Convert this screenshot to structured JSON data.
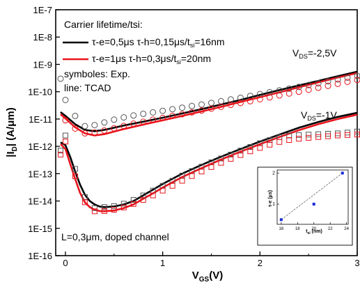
{
  "chart_data": [
    {
      "type": "line",
      "xlabel_main": "V",
      "xlabel_sub": "GS",
      "xlabel_tail": "(V)",
      "ylabel_pre": "|I",
      "ylabel_sub": "D",
      "ylabel_post": "| (A/μm)",
      "xlim": [
        -0.1,
        3.0
      ],
      "ylim_exp": [
        -16,
        -7
      ],
      "yscale": "log",
      "x_ticks": [
        0,
        1,
        2,
        3
      ],
      "x_tick_labels": [
        "0",
        "1",
        "2",
        "3"
      ],
      "y_ticks_exp": [
        -7,
        -8,
        -9,
        -10,
        -11,
        -12,
        -13,
        -14,
        -15,
        -16
      ],
      "y_tick_labels": [
        "1E-7",
        "1E-8",
        "1E-9",
        "1E-10",
        "1E-11",
        "1E-12",
        "1E-13",
        "1E-14",
        "1E-15",
        "1E-16"
      ],
      "legend": {
        "title": "Carrier lifetime/tsi:",
        "entries": [
          {
            "pre": "τ-e=0,5μs τ-h=0,15μs/t",
            "sub": "si",
            "post": "=16nm",
            "color": "#000000"
          },
          {
            "pre": "τ-e=1μs τ-h=0,3μs/t",
            "sub": "si",
            "post": "=20nm",
            "color": "#e8141c"
          }
        ],
        "note1": "symboles: Exp.",
        "note2": "line: TCAD"
      },
      "annotations": {
        "vds_high_pre": "V",
        "vds_high_sub": "DS",
        "vds_high_post": "=-2,5V",
        "vds_low_pre": "V",
        "vds_low_sub": "DS",
        "vds_low_post": "=-1V",
        "bottom_note": "L=0,3μm, doped channel"
      },
      "series": [
        {
          "style": "line",
          "color": "#000000",
          "x": [
            -0.05,
            0.0,
            0.1,
            0.2,
            0.3,
            0.4,
            0.6,
            0.8,
            1.0,
            1.2,
            1.4,
            1.6,
            1.8,
            2.0,
            2.2,
            2.4,
            2.6,
            2.8,
            3.0
          ],
          "y": [
            1.8e-11,
            1.3e-11,
            6.5e-12,
            4e-12,
            3.6e-12,
            4e-12,
            5.8e-12,
            8e-12,
            1.12e-11,
            1.6e-11,
            2.3e-11,
            3.4e-11,
            5e-11,
            7.6e-11,
            1.15e-10,
            1.7e-10,
            2.5e-10,
            3.7e-10,
            5.4e-10
          ]
        },
        {
          "style": "line",
          "color": "#e8141c",
          "x": [
            -0.05,
            0.0,
            0.1,
            0.2,
            0.3,
            0.4,
            0.6,
            0.8,
            1.0,
            1.2,
            1.4,
            1.6,
            1.8,
            2.0,
            2.2,
            2.4,
            2.6,
            2.8,
            3.0
          ],
          "y": [
            1.5e-11,
            1.05e-11,
            5e-12,
            3e-12,
            2.5e-12,
            2.8e-12,
            4.3e-12,
            6.3e-12,
            9e-12,
            1.3e-11,
            1.9e-11,
            2.8e-11,
            4.2e-11,
            6.3e-11,
            9.5e-11,
            1.45e-10,
            2.2e-10,
            3.3e-10,
            4.8e-10
          ]
        },
        {
          "style": "line",
          "color": "#000000",
          "x": [
            -0.05,
            0.0,
            0.05,
            0.1,
            0.15,
            0.2,
            0.25,
            0.3,
            0.35,
            0.4,
            0.5,
            0.6,
            0.7,
            0.8,
            0.9,
            1.0,
            1.2,
            1.4,
            1.6,
            1.8,
            2.0,
            2.2,
            2.4,
            2.6,
            2.8,
            3.0
          ],
          "y": [
            1.4e-12,
            1.1e-12,
            4e-13,
            1.2e-13,
            4e-14,
            1.7e-14,
            1e-14,
            7.5e-15,
            6.3e-15,
            6e-15,
            6.3e-15,
            7.5e-15,
            1e-14,
            1.6e-14,
            2.6e-14,
            4.2e-14,
            1e-13,
            2.1e-13,
            4.2e-13,
            8e-13,
            1.5e-12,
            2.7e-12,
            4.8e-12,
            7.8e-12,
            1.2e-11,
            1.7e-11
          ]
        },
        {
          "style": "line",
          "color": "#e8141c",
          "x": [
            -0.05,
            0.0,
            0.05,
            0.1,
            0.15,
            0.2,
            0.25,
            0.3,
            0.35,
            0.4,
            0.5,
            0.6,
            0.7,
            0.8,
            0.9,
            1.0,
            1.2,
            1.4,
            1.6,
            1.8,
            2.0,
            2.2,
            2.4,
            2.6,
            2.8,
            3.0
          ],
          "y": [
            1.2e-12,
            8e-13,
            2.2e-13,
            6.5e-14,
            2e-14,
            9e-15,
            6e-15,
            4.8e-15,
            4.3e-15,
            4.2e-15,
            4.5e-15,
            5.5e-15,
            7.5e-15,
            1.2e-14,
            1.9e-14,
            3.1e-14,
            7.5e-14,
            1.6e-13,
            3.3e-13,
            6.4e-13,
            1.2e-12,
            2.2e-12,
            3.9e-12,
            6.5e-12,
            1e-11,
            1.45e-11
          ]
        },
        {
          "style": "circle",
          "color": "#555555",
          "x": [
            -0.05,
            0.0,
            0.1,
            0.2,
            0.3,
            0.4,
            0.5,
            0.6,
            0.7,
            0.8,
            0.9,
            1.0,
            1.1,
            1.2,
            1.3,
            1.4,
            1.5,
            1.6,
            1.7,
            1.8,
            1.9,
            2.0,
            2.1,
            2.2,
            2.3,
            2.4,
            2.5,
            2.6,
            2.7,
            2.8,
            2.9,
            3.0
          ],
          "y": [
            3e-10,
            5e-11,
            1.3e-11,
            5.5e-12,
            6e-12,
            7.5e-12,
            9.5e-12,
            1.15e-11,
            1.35e-11,
            1.55e-11,
            1.75e-11,
            2e-11,
            2.3e-11,
            2.6e-11,
            3e-11,
            3.4e-11,
            3.9e-11,
            4.5e-11,
            5.2e-11,
            6e-11,
            7e-11,
            8.2e-11,
            9.6e-11,
            1.12e-10,
            1.3e-10,
            1.5e-10,
            1.75e-10,
            2.05e-10,
            2.4e-10,
            2.8e-10,
            3.25e-10,
            3.8e-10
          ]
        },
        {
          "style": "circle",
          "color": "#e8141c",
          "x": [
            0.0,
            0.1,
            0.2,
            0.3,
            0.4,
            0.5,
            0.6,
            0.7,
            0.8,
            0.9,
            1.0,
            1.1,
            1.2,
            1.3,
            1.4,
            1.5,
            1.6,
            1.7,
            1.8,
            1.9,
            2.0,
            2.1,
            2.2,
            2.3,
            2.4,
            2.5,
            2.6,
            2.7,
            2.8,
            2.9,
            3.0
          ],
          "y": [
            9e-12,
            4.5e-12,
            3e-12,
            3.2e-12,
            3.8e-12,
            4.6e-12,
            5.6e-12,
            6.8e-12,
            8e-12,
            9.5e-12,
            1.1e-11,
            1.3e-11,
            1.5e-11,
            1.75e-11,
            2.05e-11,
            2.4e-11,
            2.8e-11,
            3.3e-11,
            3.85e-11,
            4.5e-11,
            5.3e-11,
            6.2e-11,
            7.3e-11,
            8.6e-11,
            1e-10,
            1.18e-10,
            1.4e-10,
            1.65e-10,
            1.95e-10,
            2.3e-10,
            2.7e-10
          ]
        },
        {
          "style": "square",
          "color": "#555555",
          "x": [
            -0.05,
            0.0,
            0.1,
            0.2,
            0.3,
            0.4,
            0.5,
            0.6,
            0.7,
            0.8,
            0.9,
            1.0,
            1.1,
            1.2,
            1.3,
            1.4,
            1.5,
            1.6,
            1.7,
            1.8,
            1.9,
            2.0,
            2.1,
            2.2,
            2.3,
            2.4,
            2.5,
            2.6,
            2.7,
            2.8,
            2.9,
            3.0
          ],
          "y": [
            7e-13,
            2.5e-12,
            1.5e-13,
            1.4e-14,
            5.5e-15,
            6e-15,
            6.5e-15,
            8e-15,
            1.1e-14,
            1.6e-14,
            2.4e-14,
            3.6e-14,
            5.5e-14,
            8.5e-14,
            1.25e-13,
            1.8e-13,
            2.6e-13,
            3.6e-13,
            5e-13,
            7e-13,
            9.5e-13,
            1.3e-12,
            1.7e-12,
            2.2e-12,
            2.5e-12,
            2.6e-12,
            2.7e-12,
            2.8e-12,
            2.9e-12,
            3e-12,
            3.2e-12,
            3.5e-12
          ]
        },
        {
          "style": "square",
          "color": "#e8141c",
          "x": [
            -0.05,
            0.0,
            0.1,
            0.2,
            0.3,
            0.4,
            0.5,
            0.6,
            0.7,
            0.8,
            0.9,
            1.0,
            1.1,
            1.2,
            1.3,
            1.4,
            1.5,
            1.6,
            1.7,
            1.8,
            1.9,
            2.0,
            2.1,
            2.2,
            2.3,
            2.4,
            2.5,
            2.6,
            2.7,
            2.8,
            2.9,
            3.0
          ],
          "y": [
            5e-13,
            1.5e-12,
            8e-14,
            9e-15,
            4.2e-15,
            4.3e-15,
            4.8e-15,
            5.8e-15,
            7.8e-15,
            1.1e-14,
            1.6e-14,
            2.4e-14,
            3.6e-14,
            5.5e-14,
            8.2e-14,
            1.2e-13,
            1.75e-13,
            2.5e-13,
            3.5e-13,
            4.8e-13,
            6.6e-13,
            8.8e-13,
            1.15e-12,
            1.45e-12,
            1.7e-12,
            1.9e-12,
            2.05e-12,
            2.2e-12,
            2.35e-12,
            2.5e-12,
            2.6e-12,
            2.7e-12
          ]
        }
      ]
    },
    {
      "type": "scatter",
      "xlabel_pre": "t",
      "xlabel_sub": "si",
      "xlabel_post": " (nm)",
      "ylabel": "τ-e (μs)",
      "xlim": [
        15.5,
        24.2
      ],
      "ylim": [
        0.35,
        2.1
      ],
      "x_ticks": [
        16,
        18,
        20,
        22,
        24
      ],
      "x_tick_labels": [
        "16",
        "18",
        "20",
        "22",
        "24"
      ],
      "y_ticks": [
        1,
        2
      ],
      "y_tick_labels": [
        "1",
        "2"
      ],
      "marker_color": "#1a2bd6",
      "points": {
        "x": [
          16,
          20,
          23.5
        ],
        "y": [
          0.5,
          1.0,
          2.0
        ]
      },
      "fit_line": {
        "x": [
          16,
          23.5
        ],
        "y": [
          0.5,
          2.0
        ]
      }
    }
  ]
}
